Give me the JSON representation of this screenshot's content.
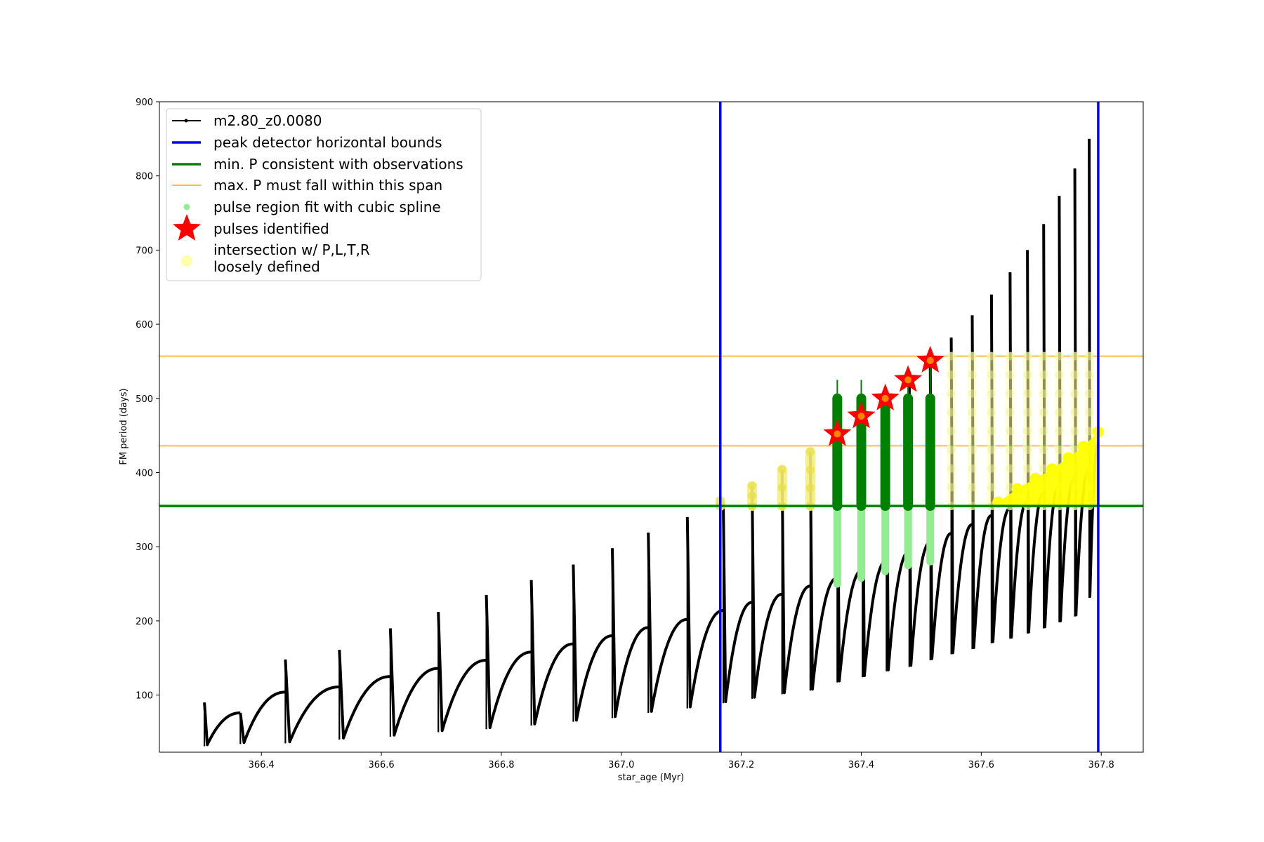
{
  "chart_data": {
    "type": "scatter",
    "xlabel": "star_age (Myr)",
    "ylabel": "FM period (days)",
    "xlim": [
      366.23,
      367.87
    ],
    "ylim": [
      23,
      900
    ],
    "x_ticks": [
      "366.4",
      "366.6",
      "366.8",
      "367.0",
      "367.2",
      "367.4",
      "367.6",
      "367.8"
    ],
    "x_tick_values": [
      366.4,
      366.6,
      366.8,
      367.0,
      367.2,
      367.4,
      367.6,
      367.8
    ],
    "y_ticks": [
      "100",
      "200",
      "300",
      "400",
      "500",
      "600",
      "700",
      "800",
      "900"
    ],
    "y_tick_values": [
      100,
      200,
      300,
      400,
      500,
      600,
      700,
      800,
      900
    ],
    "legend_position": "top-left",
    "legend": [
      {
        "label": "m2.80_z0.0080",
        "marker": "line-dot",
        "color": "#000000"
      },
      {
        "label": "peak detector horizontal bounds",
        "marker": "line",
        "color": "#0000ff"
      },
      {
        "label": "min. P consistent with observations",
        "marker": "line",
        "color": "#008000"
      },
      {
        "label": "max. P must fall within this span",
        "marker": "thin-line",
        "color": "#ffa500"
      },
      {
        "label": "pulse region fit with cubic spline",
        "marker": "dot",
        "color": "#90ee90"
      },
      {
        "label": "pulses identified",
        "marker": "star",
        "color": "#ff0000"
      },
      {
        "label": "intersection w/ P,L,T,R",
        "label2": "loosely defined",
        "marker": "circle",
        "color": "#ffffaa"
      }
    ],
    "colors": {
      "track": "#000000",
      "bounds": "#0000ff",
      "min_p": "#008000",
      "max_p": "#ffa500",
      "spline": "#90ee90",
      "spline_dark": "#008000",
      "stars": "#ff0000",
      "intersection": "#ffff00",
      "intersection_faint": "#ffffaa"
    },
    "vertical_bounds": [
      367.165,
      367.795
    ],
    "min_period_line": 355,
    "max_period_span": [
      436,
      557
    ],
    "track_cycles": [
      {
        "start": 366.305,
        "end": 366.365,
        "pulse_top": 90,
        "min": 33,
        "end_val": 76
      },
      {
        "start": 366.365,
        "end": 366.44,
        "pulse_top": 76,
        "min": 36,
        "end_val": 104
      },
      {
        "start": 366.44,
        "end": 366.53,
        "pulse_top": 148,
        "min": 37,
        "end_val": 111
      },
      {
        "start": 366.53,
        "end": 366.615,
        "pulse_top": 161,
        "min": 42,
        "end_val": 125
      },
      {
        "start": 366.615,
        "end": 366.695,
        "pulse_top": 190,
        "min": 46,
        "end_val": 136
      },
      {
        "start": 366.695,
        "end": 366.775,
        "pulse_top": 212,
        "min": 52,
        "end_val": 147
      },
      {
        "start": 366.775,
        "end": 366.85,
        "pulse_top": 235,
        "min": 56,
        "end_val": 158
      },
      {
        "start": 366.85,
        "end": 366.92,
        "pulse_top": 255,
        "min": 61,
        "end_val": 169
      },
      {
        "start": 366.92,
        "end": 366.985,
        "pulse_top": 276,
        "min": 66,
        "end_val": 180
      },
      {
        "start": 366.985,
        "end": 367.045,
        "pulse_top": 298,
        "min": 71,
        "end_val": 191
      },
      {
        "start": 367.045,
        "end": 367.11,
        "pulse_top": 319,
        "min": 78,
        "end_val": 202
      },
      {
        "start": 367.11,
        "end": 367.17,
        "pulse_top": 340,
        "min": 84,
        "end_val": 214
      },
      {
        "start": 367.17,
        "end": 367.218,
        "pulse_top": 360,
        "min": 91,
        "end_val": 225
      },
      {
        "start": 367.218,
        "end": 367.268,
        "pulse_top": 382,
        "min": 97,
        "end_val": 236
      },
      {
        "start": 367.268,
        "end": 367.315,
        "pulse_top": 404,
        "min": 103,
        "end_val": 247
      },
      {
        "start": 367.315,
        "end": 367.36,
        "pulse_top": 428,
        "min": 108,
        "end_val": 258
      },
      {
        "start": 367.36,
        "end": 367.402,
        "pulse_top": 452,
        "min": 119,
        "end_val": 269
      },
      {
        "start": 367.402,
        "end": 367.442,
        "pulse_top": 476,
        "min": 126,
        "end_val": 281
      },
      {
        "start": 367.442,
        "end": 367.48,
        "pulse_top": 500,
        "min": 134,
        "end_val": 294
      },
      {
        "start": 367.48,
        "end": 367.515,
        "pulse_top": 525,
        "min": 140,
        "end_val": 306
      },
      {
        "start": 367.515,
        "end": 367.55,
        "pulse_top": 550,
        "min": 149,
        "end_val": 318
      },
      {
        "start": 367.55,
        "end": 367.585,
        "pulse_top": 582,
        "min": 157,
        "end_val": 330
      },
      {
        "start": 367.585,
        "end": 367.617,
        "pulse_top": 612,
        "min": 164,
        "end_val": 342
      },
      {
        "start": 367.617,
        "end": 367.648,
        "pulse_top": 640,
        "min": 172,
        "end_val": 352
      },
      {
        "start": 367.648,
        "end": 367.677,
        "pulse_top": 670,
        "min": 178,
        "end_val": 362
      },
      {
        "start": 367.677,
        "end": 367.704,
        "pulse_top": 700,
        "min": 185,
        "end_val": 372
      },
      {
        "start": 367.704,
        "end": 367.73,
        "pulse_top": 735,
        "min": 192,
        "end_val": 382
      },
      {
        "start": 367.73,
        "end": 367.756,
        "pulse_top": 773,
        "min": 200,
        "end_val": 393
      },
      {
        "start": 367.756,
        "end": 367.78,
        "pulse_top": 810,
        "min": 208,
        "end_val": 404
      },
      {
        "start": 367.78,
        "end": 367.795,
        "pulse_top": 850,
        "min": 233,
        "end_val": 440
      }
    ],
    "spline_regions": [
      {
        "x": 367.36,
        "low": 250,
        "high": 525,
        "dark_low": 355,
        "dark_high": 500
      },
      {
        "x": 367.4,
        "low": 258,
        "high": 525,
        "dark_low": 355,
        "dark_high": 500
      },
      {
        "x": 367.44,
        "low": 267,
        "high": 505,
        "dark_low": 355,
        "dark_high": 500
      },
      {
        "x": 367.478,
        "low": 275,
        "high": 520,
        "dark_low": 355,
        "dark_high": 500
      },
      {
        "x": 367.515,
        "low": 280,
        "high": 545,
        "dark_low": 355,
        "dark_high": 500
      }
    ],
    "pulses_identified": [
      {
        "x": 367.36,
        "y": 452
      },
      {
        "x": 367.4,
        "y": 476
      },
      {
        "x": 367.44,
        "y": 500
      },
      {
        "x": 367.478,
        "y": 525
      },
      {
        "x": 367.515,
        "y": 551
      }
    ],
    "intersection_columns": [
      {
        "x": 367.165,
        "low": 355,
        "high": 362,
        "strength": "strong"
      },
      {
        "x": 367.218,
        "low": 355,
        "high": 382,
        "strength": "strong"
      },
      {
        "x": 367.268,
        "low": 355,
        "high": 404,
        "strength": "strong"
      },
      {
        "x": 367.315,
        "low": 355,
        "high": 428,
        "strength": "strong"
      },
      {
        "x": 367.55,
        "low": 355,
        "high": 557,
        "strength": "faint"
      },
      {
        "x": 367.585,
        "low": 355,
        "high": 557,
        "strength": "faint"
      },
      {
        "x": 367.617,
        "low": 355,
        "high": 557,
        "strength": "faint"
      },
      {
        "x": 367.648,
        "low": 355,
        "high": 557,
        "strength": "faint"
      },
      {
        "x": 367.677,
        "low": 355,
        "high": 557,
        "strength": "faint"
      },
      {
        "x": 367.704,
        "low": 355,
        "high": 557,
        "strength": "faint"
      },
      {
        "x": 367.73,
        "low": 355,
        "high": 557,
        "strength": "faint"
      },
      {
        "x": 367.756,
        "low": 355,
        "high": 557,
        "strength": "faint"
      },
      {
        "x": 367.78,
        "low": 355,
        "high": 557,
        "strength": "faint"
      }
    ],
    "intersection_ramp": [
      {
        "x": 367.628,
        "y": 360
      },
      {
        "x": 367.66,
        "y": 378
      },
      {
        "x": 367.69,
        "y": 392
      },
      {
        "x": 367.718,
        "y": 405
      },
      {
        "x": 367.745,
        "y": 420
      },
      {
        "x": 367.77,
        "y": 435
      },
      {
        "x": 367.795,
        "y": 455
      }
    ]
  }
}
